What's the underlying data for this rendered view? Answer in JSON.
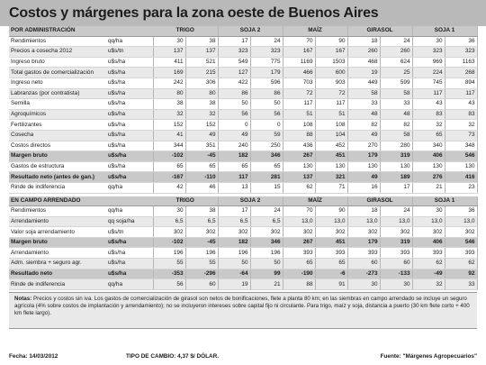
{
  "title": "Costos y márgenes para la zona oeste de Buenos Aires",
  "crops": [
    "TRIGO",
    "SOJA 2",
    "MAÍZ",
    "GIRASOL",
    "SOJA 1"
  ],
  "section1": {
    "label": "POR ADMINISTRACIÓN",
    "rows": [
      {
        "label": "Rendimientos",
        "unit": "qq/ha",
        "values": [
          "30",
          "38",
          "17",
          "24",
          "70",
          "90",
          "18",
          "24",
          "30",
          "36"
        ],
        "bold": false
      },
      {
        "label": "Precios a cosecha 2012",
        "unit": "u$s/tn",
        "values": [
          "137",
          "137",
          "323",
          "323",
          "167",
          "167",
          "260",
          "260",
          "323",
          "323"
        ],
        "bold": false
      },
      {
        "label": "Ingreso bruto",
        "unit": "u$s/ha",
        "values": [
          "411",
          "521",
          "549",
          "775",
          "1169",
          "1503",
          "468",
          "624",
          "969",
          "1163"
        ],
        "bold": false
      },
      {
        "label": "Total gastos de comercialización",
        "unit": "u$s/ha",
        "values": [
          "169",
          "215",
          "127",
          "179",
          "466",
          "600",
          "19",
          "25",
          "224",
          "268"
        ],
        "bold": false
      },
      {
        "label": "Ingreso neto",
        "unit": "u$s/ha",
        "values": [
          "242",
          "306",
          "422",
          "596",
          "703",
          "903",
          "449",
          "599",
          "745",
          "894"
        ],
        "bold": false
      },
      {
        "label": "Labranzas (por contratista)",
        "unit": "u$s/ha",
        "values": [
          "80",
          "80",
          "86",
          "86",
          "72",
          "72",
          "58",
          "58",
          "117",
          "117"
        ],
        "bold": false
      },
      {
        "label": "Semilla",
        "unit": "u$s/ha",
        "values": [
          "38",
          "38",
          "50",
          "50",
          "117",
          "117",
          "33",
          "33",
          "43",
          "43"
        ],
        "bold": false
      },
      {
        "label": "Agroquímicos",
        "unit": "u$s/ha",
        "values": [
          "32",
          "32",
          "56",
          "56",
          "51",
          "51",
          "48",
          "48",
          "83",
          "83"
        ],
        "bold": false
      },
      {
        "label": "Fertilizantes",
        "unit": "u$s/ha",
        "values": [
          "152",
          "152",
          "0",
          "0",
          "108",
          "108",
          "82",
          "82",
          "32",
          "32"
        ],
        "bold": false
      },
      {
        "label": "Cosecha",
        "unit": "u$s/ha",
        "values": [
          "41",
          "49",
          "49",
          "59",
          "88",
          "104",
          "49",
          "58",
          "65",
          "73"
        ],
        "bold": false
      },
      {
        "label": "Costos directos",
        "unit": "u$s/ha",
        "values": [
          "344",
          "351",
          "240",
          "250",
          "436",
          "452",
          "270",
          "280",
          "340",
          "348"
        ],
        "bold": false
      },
      {
        "label": "Margen bruto",
        "unit": "u$s/ha",
        "values": [
          "-102",
          "-45",
          "182",
          "346",
          "267",
          "451",
          "179",
          "319",
          "406",
          "546"
        ],
        "bold": true
      },
      {
        "label": "Gastos de estructura",
        "unit": "u$s/ha",
        "values": [
          "65",
          "65",
          "65",
          "65",
          "130",
          "130",
          "130",
          "130",
          "130",
          "130"
        ],
        "bold": false
      },
      {
        "label": "Resultado neto (antes de gan.)",
        "unit": "u$s/ha",
        "values": [
          "-167",
          "-110",
          "117",
          "281",
          "137",
          "321",
          "49",
          "189",
          "276",
          "416"
        ],
        "bold": true
      },
      {
        "label": "Rinde de indiferencia",
        "unit": "qq/ha",
        "values": [
          "42",
          "46",
          "13",
          "15",
          "62",
          "71",
          "16",
          "17",
          "21",
          "23"
        ],
        "bold": false
      }
    ]
  },
  "section2": {
    "label": "EN CAMPO ARRENDADO",
    "rows": [
      {
        "label": "Rendimientos",
        "unit": "qq/ha",
        "values": [
          "30",
          "38",
          "17",
          "24",
          "70",
          "90",
          "18",
          "24",
          "30",
          "36"
        ],
        "bold": false
      },
      {
        "label": "Arrendamiento",
        "unit": "qq soja/ha",
        "values": [
          "6,5",
          "6,5",
          "6,5",
          "6,5",
          "13,0",
          "13,0",
          "13,0",
          "13,0",
          "13,0",
          "13,0"
        ],
        "bold": false
      },
      {
        "label": "Valor soja arrendamiento",
        "unit": "u$s/tn",
        "values": [
          "302",
          "302",
          "302",
          "302",
          "302",
          "302",
          "302",
          "302",
          "302",
          "302"
        ],
        "bold": false
      },
      {
        "label": "Margen bruto",
        "unit": "u$s/ha",
        "values": [
          "-102",
          "-45",
          "182",
          "346",
          "267",
          "451",
          "179",
          "319",
          "406",
          "546"
        ],
        "bold": true
      },
      {
        "label": "Arrendamiento",
        "unit": "u$s/ha",
        "values": [
          "196",
          "196",
          "196",
          "196",
          "393",
          "393",
          "393",
          "393",
          "393",
          "393"
        ],
        "bold": false
      },
      {
        "label": "Adm. siembra + seguro agr.",
        "unit": "u$s/ha",
        "values": [
          "55",
          "55",
          "50",
          "50",
          "65",
          "65",
          "60",
          "60",
          "62",
          "62"
        ],
        "bold": false
      },
      {
        "label": "Resultado neto",
        "unit": "u$s/ha",
        "values": [
          "-353",
          "-296",
          "-64",
          "99",
          "-190",
          "-6",
          "-273",
          "-133",
          "-49",
          "92"
        ],
        "bold": true
      },
      {
        "label": "Rinde de indiferencia",
        "unit": "qq/ha",
        "values": [
          "56",
          "60",
          "19",
          "21",
          "88",
          "91",
          "30",
          "30",
          "32",
          "33"
        ],
        "bold": false
      }
    ]
  },
  "notes": {
    "lead": "Notas:",
    "text": "Precios y costos sin iva. Los gastos de comercialización de girasol son netos de bonificaciones, flete a planta 80 km; en las siembras en campo arrendado se incluye un seguro agrícola (4% sobre costos de implantación y arrendamiento); no se incluyeron intereses sobre capital fijo ni circulante. Para trigo, maíz y soja, distancia a puerto (30 km flete corto + 400 km flete largo)."
  },
  "footer": {
    "date": "Fecha: 14/03/2012",
    "rate": "TIPO DE CAMBIO: 4,37 $/ DÓLAR.",
    "source": "Fuente: \"Márgenes Agropecuarios\""
  }
}
